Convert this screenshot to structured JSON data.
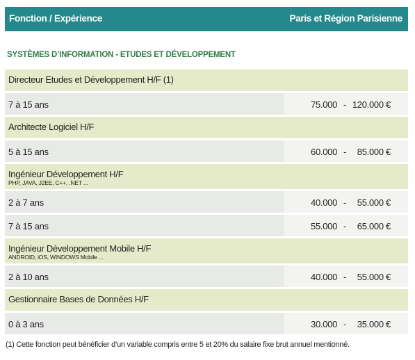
{
  "header": {
    "left": "Fonction / Expérience",
    "right": "Paris et Région Parisienne"
  },
  "section": {
    "title": "SYSTÈMES D’INFORMATION - ETUDES ET DÉVELOPPEMENT",
    "separator": "-",
    "groups": [
      {
        "role": "Directeur Etudes et Développement H/F (1)",
        "rows": [
          {
            "experience": "7 à 15 ans",
            "min": "75.000",
            "max": "120.000 €"
          }
        ]
      },
      {
        "role": "Architecte Logiciel H/F",
        "rows": [
          {
            "experience": "5 à 15 ans",
            "min": "60.000",
            "max": "85.000 €"
          }
        ]
      },
      {
        "role": "Ingénieur Développement H/F",
        "skills": "PHP, JAVA, J2EE, C++, .NET ...",
        "rows": [
          {
            "experience": "2 à 7 ans",
            "min": "40.000",
            "max": "55.000 €"
          },
          {
            "experience": "7 à 15 ans",
            "min": "55.000",
            "max": "65.000 €"
          }
        ]
      },
      {
        "role": "Ingénieur Développement Mobile H/F",
        "skills": "ANDROID, iOS, WINDOWS Mobile ...",
        "rows": [
          {
            "experience": "2 à 10 ans",
            "min": "40.000",
            "max": "55.000 €"
          }
        ]
      },
      {
        "role": "Gestionnaire Bases de Données H/F",
        "rows": [
          {
            "experience": "0 à 3 ans",
            "min": "30.000",
            "max": "35.000 €"
          }
        ]
      }
    ]
  },
  "footnote": "(1) Cette fonction peut bénéficier d’un variable compris entre 5 et 20% du salaire fixe brut annuel mentionné."
}
